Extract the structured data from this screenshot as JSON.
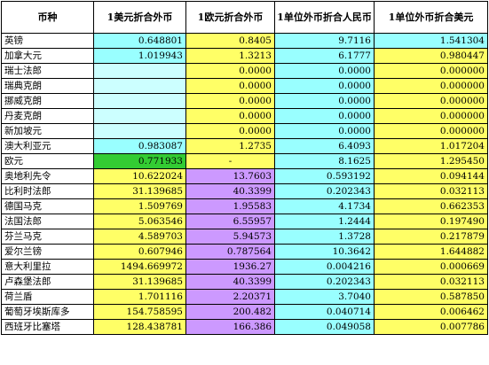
{
  "table": {
    "headers": [
      "币种",
      "1美元折合外币",
      "1欧元折合外币",
      "1单位外币折合人民币",
      "1单位外币折合美元"
    ],
    "rows": [
      {
        "name": "英镑",
        "vals": [
          "0.648801",
          "0.8405",
          "9.7116",
          "1.541304"
        ],
        "colors": [
          "cyan",
          "yellow",
          "cyan",
          "cyan"
        ]
      },
      {
        "name": "加拿大元",
        "vals": [
          "1.019943",
          "1.3213",
          "6.1777",
          "0.980447"
        ],
        "colors": [
          "cyan",
          "yellow",
          "cyan",
          "yellow"
        ]
      },
      {
        "name": "瑞士法郎",
        "vals": [
          "",
          "0.0000",
          "0.0000",
          "0.000000"
        ],
        "colors": [
          "lightcyan",
          "yellow",
          "cyan",
          "yellow"
        ]
      },
      {
        "name": "瑞典克朗",
        "vals": [
          "",
          "0.0000",
          "0.0000",
          "0.000000"
        ],
        "colors": [
          "lightcyan",
          "yellow",
          "cyan",
          "yellow"
        ]
      },
      {
        "name": "挪威克朗",
        "vals": [
          "",
          "0.0000",
          "0.0000",
          "0.000000"
        ],
        "colors": [
          "lightcyan",
          "yellow",
          "cyan",
          "yellow"
        ]
      },
      {
        "name": "丹麦克朗",
        "vals": [
          "",
          "0.0000",
          "0.0000",
          "0.000000"
        ],
        "colors": [
          "lightcyan",
          "yellow",
          "cyan",
          "yellow"
        ]
      },
      {
        "name": "新加坡元",
        "vals": [
          "",
          "0.0000",
          "0.0000",
          "0.000000"
        ],
        "colors": [
          "lightcyan",
          "yellow",
          "cyan",
          "yellow"
        ]
      },
      {
        "name": "澳大利亚元",
        "vals": [
          "0.983087",
          "1.2735",
          "6.4093",
          "1.017204"
        ],
        "colors": [
          "cyan",
          "yellow",
          "cyan",
          "yellow"
        ]
      },
      {
        "name": "欧元",
        "vals": [
          "0.771933",
          "-",
          "8.1625",
          "1.295450"
        ],
        "colors": [
          "green",
          "yellow",
          "cyan",
          "yellow"
        ]
      },
      {
        "name": "奥地利先令",
        "vals": [
          "10.622024",
          "13.7603",
          "0.593192",
          "0.094144"
        ],
        "colors": [
          "yellow",
          "lavender",
          "cyan",
          "yellow"
        ]
      },
      {
        "name": "比利时法郎",
        "vals": [
          "31.139685",
          "40.3399",
          "0.202343",
          "0.032113"
        ],
        "colors": [
          "yellow",
          "lavender",
          "cyan",
          "yellow"
        ]
      },
      {
        "name": "德国马克",
        "vals": [
          "1.509769",
          "1.95583",
          "4.1734",
          "0.662353"
        ],
        "colors": [
          "yellow",
          "lavender",
          "cyan",
          "yellow"
        ]
      },
      {
        "name": "法国法郎",
        "vals": [
          "5.063546",
          "6.55957",
          "1.2444",
          "0.197490"
        ],
        "colors": [
          "yellow",
          "lavender",
          "cyan",
          "yellow"
        ]
      },
      {
        "name": "芬兰马克",
        "vals": [
          "4.589703",
          "5.94573",
          "1.3728",
          "0.217879"
        ],
        "colors": [
          "yellow",
          "lavender",
          "cyan",
          "yellow"
        ]
      },
      {
        "name": "爱尔兰镑",
        "vals": [
          "0.607946",
          "0.787564",
          "10.3642",
          "1.644882"
        ],
        "colors": [
          "yellow",
          "lavender",
          "cyan",
          "yellow"
        ]
      },
      {
        "name": "意大利里拉",
        "vals": [
          "1494.669972",
          "1936.27",
          "0.004216",
          "0.000669"
        ],
        "colors": [
          "yellow",
          "lavender",
          "cyan",
          "yellow"
        ]
      },
      {
        "name": "卢森堡法郎",
        "vals": [
          "31.139685",
          "40.3399",
          "0.202343",
          "0.032113"
        ],
        "colors": [
          "yellow",
          "lavender",
          "cyan",
          "yellow"
        ]
      },
      {
        "name": "荷兰盾",
        "vals": [
          "1.701116",
          "2.20371",
          "3.7040",
          "0.587850"
        ],
        "colors": [
          "yellow",
          "lavender",
          "cyan",
          "yellow"
        ]
      },
      {
        "name": "葡萄牙埃斯库多",
        "vals": [
          "154.758595",
          "200.482",
          "0.040714",
          "0.006462"
        ],
        "colors": [
          "yellow",
          "lavender",
          "cyan",
          "yellow"
        ]
      },
      {
        "name": "西班牙比塞塔",
        "vals": [
          "128.438781",
          "166.386",
          "0.049058",
          "0.007786"
        ],
        "colors": [
          "yellow",
          "lavender",
          "cyan",
          "yellow"
        ]
      }
    ]
  },
  "palette": {
    "cyan": "#99ffff",
    "lightcyan": "#ccffff",
    "yellow": "#ffff66",
    "lavender": "#cc99ff",
    "green": "#33cc33"
  }
}
